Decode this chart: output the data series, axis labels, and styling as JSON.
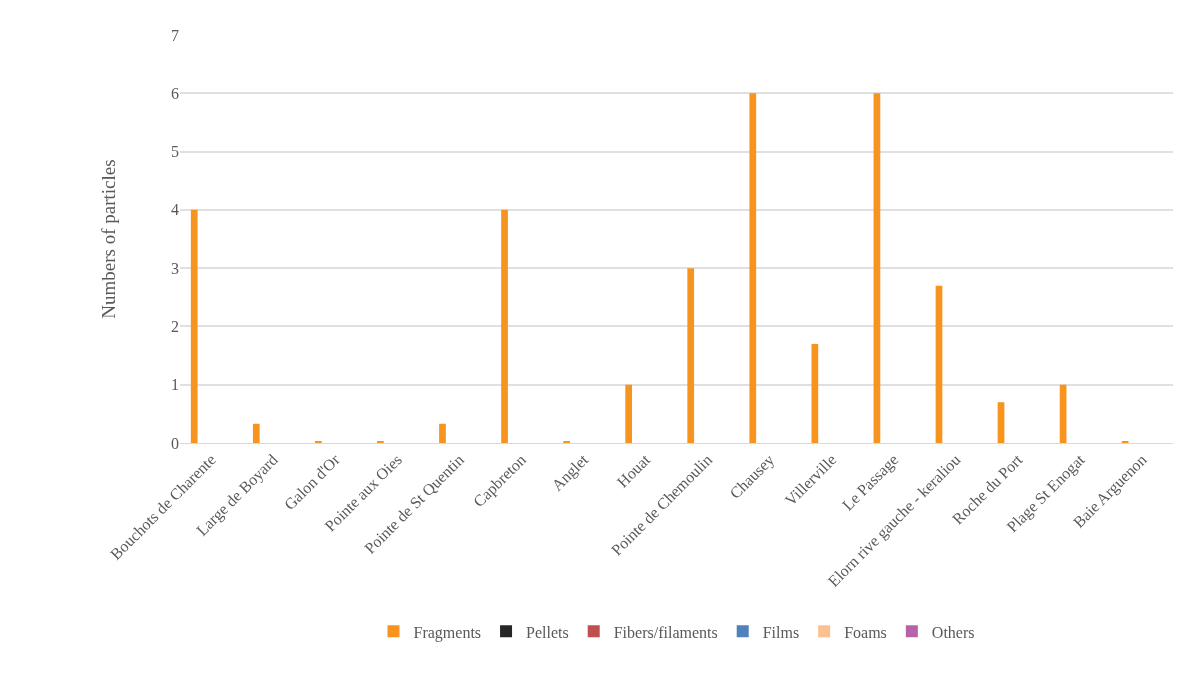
{
  "chart_data": {
    "type": "bar",
    "ylabel": "Numbers of particles",
    "categories": [
      "Bouchots de Charente",
      "Large de Boyard",
      "Galon d'Or",
      "Pointe aux Oies",
      "Pointe de St Quentin",
      "Capbreton",
      "Anglet",
      "Houat",
      "Pointe de Chemoulin",
      "Chausey",
      "Villerville",
      "Le Passage",
      "Elorn rive gauche - keraliou",
      "Roche du Port",
      "Plage St Enogat",
      "Baie Arguenon"
    ],
    "series": [
      {
        "name": "Fragments",
        "color": "#f7941d",
        "values": [
          4,
          0.33,
          0.03,
          0.03,
          0.33,
          4,
          0.03,
          1,
          3,
          6,
          1.7,
          6,
          2.7,
          0.7,
          1,
          0.03
        ]
      },
      {
        "name": "Pellets",
        "color": "#262626",
        "values": [
          0,
          0,
          0,
          0,
          0,
          0,
          0,
          0,
          0,
          0,
          0,
          0,
          0,
          0,
          0,
          0
        ]
      },
      {
        "name": "Fibers/filaments",
        "color": "#c0504d",
        "values": [
          0,
          0,
          0,
          0,
          0,
          0,
          0,
          0,
          0,
          0,
          0,
          0,
          0,
          0,
          0,
          0
        ]
      },
      {
        "name": "Films",
        "color": "#4f81bd",
        "values": [
          0,
          0,
          0,
          0,
          0,
          0,
          0,
          0,
          0,
          0,
          0,
          0,
          0,
          0,
          0,
          0
        ]
      },
      {
        "name": "Foams",
        "color": "#fac090",
        "values": [
          0,
          0,
          0,
          0,
          0,
          0,
          0,
          0,
          0,
          0,
          0,
          0,
          0,
          0,
          0,
          0
        ]
      },
      {
        "name": "Others",
        "color": "#b565a7",
        "values": [
          0,
          0,
          0,
          0,
          0,
          0,
          0,
          0,
          0,
          0,
          0,
          0,
          0,
          0,
          0,
          0
        ]
      }
    ],
    "ylim": [
      0,
      7
    ],
    "yticks": [
      0,
      1,
      2,
      3,
      4,
      5,
      6,
      7
    ],
    "grid": "y",
    "legend": "bottom"
  }
}
